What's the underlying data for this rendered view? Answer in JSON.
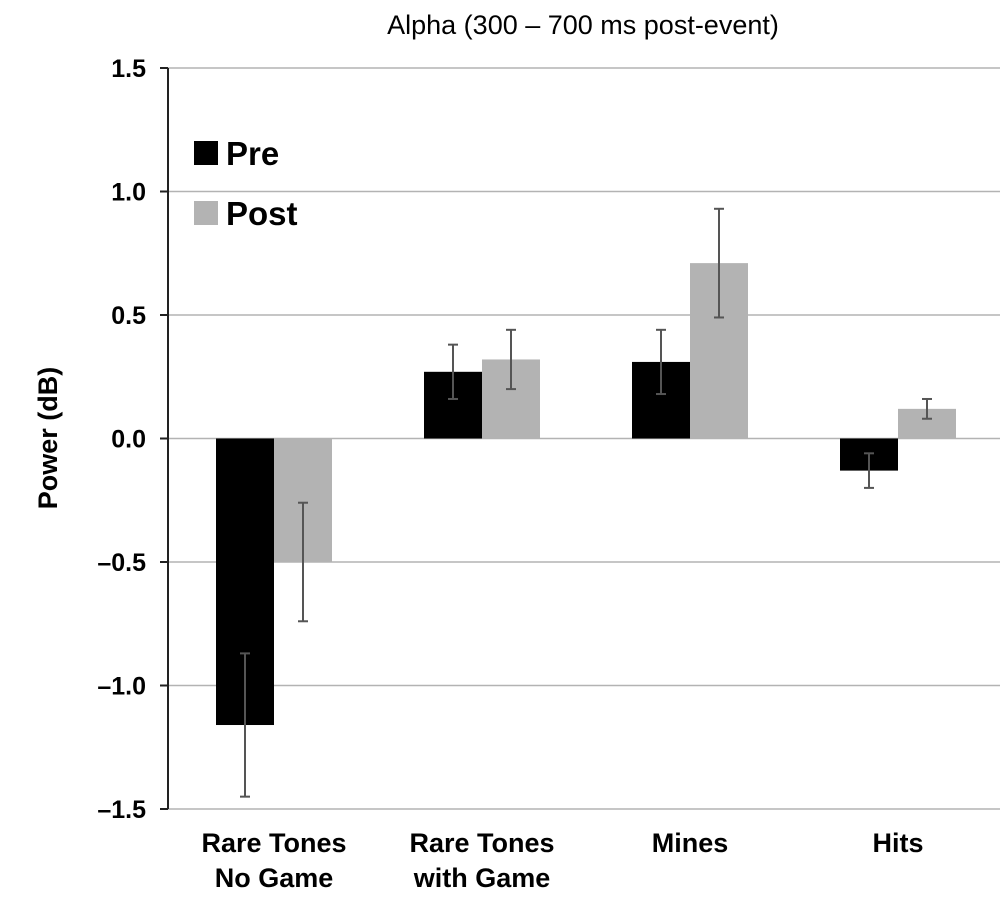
{
  "chart_data": {
    "type": "bar",
    "title": "Alpha (300 – 700 ms post-event)",
    "xlabel": "",
    "ylabel": "Power  (dB)",
    "ylim": [
      -1.5,
      1.5
    ],
    "yticks": [
      "1.5",
      "1.0",
      "0.5",
      "0.0",
      "–0.5",
      "–1.0",
      "–1.5"
    ],
    "ytick_values": [
      1.5,
      1.0,
      0.5,
      0.0,
      -0.5,
      -1.0,
      -1.5
    ],
    "categories": [
      [
        "Rare Tones",
        "No Game"
      ],
      [
        "Rare Tones",
        "with Game"
      ],
      [
        "Mines"
      ],
      [
        "Hits"
      ]
    ],
    "series": [
      {
        "name": "Pre",
        "color": "#000000",
        "values": [
          -1.16,
          0.27,
          0.31,
          -0.13
        ],
        "error": [
          0.29,
          0.11,
          0.13,
          0.07
        ]
      },
      {
        "name": "Post",
        "color": "#b3b3b3",
        "values": [
          -0.5,
          0.32,
          0.71,
          0.12
        ],
        "error": [
          0.24,
          0.12,
          0.22,
          0.04
        ]
      }
    ],
    "grid": true,
    "legend_position": "top-left"
  }
}
